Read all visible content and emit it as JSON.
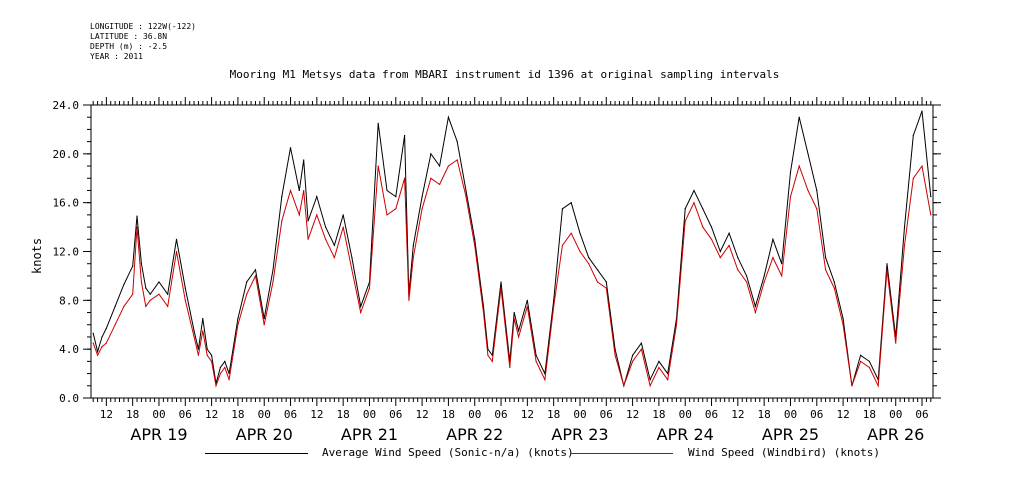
{
  "header": {
    "longitude": "LONGITUDE : 122W(-122)",
    "latitude": "LATITUDE : 36.8N",
    "depth": "DEPTH (m) : -2.5",
    "year": "YEAR : 2011"
  },
  "chart_data": {
    "type": "line",
    "title": "Mooring M1 Metsys data from MBARI instrument id 1396 at original sampling intervals",
    "ylabel": "knots",
    "xlabel": "",
    "ylim": [
      0,
      24
    ],
    "yticks": [
      "0.0",
      "4.0",
      "8.0",
      "12.0",
      "16.0",
      "20.0",
      "24.0"
    ],
    "x_unit": "hours since 2011-04-18 00:00",
    "xlim": [
      8.5,
      200.5
    ],
    "hour_tick_labels": [
      "12",
      "18",
      "00",
      "06",
      "12",
      "18",
      "00",
      "06",
      "12",
      "18",
      "00",
      "06",
      "12",
      "18",
      "00",
      "06",
      "12",
      "18",
      "00",
      "06",
      "12",
      "18",
      "00",
      "06",
      "12",
      "18",
      "00",
      "06",
      "12",
      "18",
      "00",
      "06"
    ],
    "day_labels": [
      "APR 19",
      "APR 20",
      "APR 21",
      "APR 22",
      "APR 23",
      "APR 24",
      "APR 25",
      "APR 26"
    ],
    "legend_position": "bottom",
    "x": [
      9,
      10,
      11,
      12,
      14,
      16,
      18,
      19,
      20,
      21,
      22,
      24,
      26,
      28,
      30,
      32,
      33,
      34,
      35,
      36,
      37,
      38,
      39,
      40,
      42,
      44,
      46,
      48,
      50,
      52,
      54,
      56,
      57,
      58,
      60,
      62,
      64,
      66,
      68,
      70,
      72,
      74,
      76,
      78,
      80,
      81,
      82,
      84,
      86,
      88,
      90,
      92,
      94,
      96,
      98,
      99,
      100,
      102,
      104,
      105,
      106,
      108,
      110,
      112,
      114,
      116,
      118,
      120,
      122,
      124,
      126,
      128,
      130,
      132,
      134,
      136,
      138,
      140,
      142,
      144,
      146,
      148,
      150,
      152,
      154,
      156,
      158,
      160,
      162,
      164,
      166,
      168,
      170,
      172,
      174,
      176,
      178,
      180,
      182,
      184,
      186,
      188,
      190,
      192,
      194,
      196,
      198,
      200
    ],
    "series": [
      {
        "name": "Average Wind Speed (Sonic-n/a) (knots)",
        "color": "#000000",
        "values": [
          5.3,
          3.8,
          5.0,
          5.7,
          7.5,
          9.3,
          10.8,
          14.9,
          11.0,
          9.0,
          8.5,
          9.5,
          8.5,
          13.0,
          9.0,
          5.5,
          4.0,
          6.5,
          4.0,
          3.5,
          1.2,
          2.5,
          3.0,
          2.0,
          6.5,
          9.5,
          10.5,
          6.5,
          10.5,
          16.5,
          20.5,
          17.0,
          19.5,
          14.5,
          16.5,
          14.0,
          12.5,
          15.0,
          11.5,
          7.5,
          9.5,
          22.5,
          17.0,
          16.5,
          21.5,
          8.5,
          12.5,
          16.5,
          20.0,
          19.0,
          23.0,
          21.0,
          17.0,
          13.0,
          7.5,
          4.0,
          3.5,
          9.5,
          3.0,
          7.0,
          5.5,
          8.0,
          3.5,
          2.0,
          8.0,
          15.5,
          16.0,
          13.5,
          11.5,
          10.5,
          9.5,
          4.0,
          1.0,
          3.5,
          4.5,
          1.5,
          3.0,
          2.0,
          6.5,
          15.5,
          17.0,
          15.5,
          14.0,
          12.0,
          13.5,
          11.5,
          10.0,
          7.5,
          10.0,
          13.0,
          11.0,
          18.5,
          23.0,
          20.0,
          17.0,
          11.5,
          9.5,
          6.5,
          1.0,
          3.5,
          3.0,
          1.5,
          11.0,
          5.0,
          14.0,
          21.5,
          23.5,
          16.5
        ]
      },
      {
        "name": "Wind Speed (Windbird) (knots)",
        "color": "#cc0000",
        "values": [
          4.5,
          3.5,
          4.2,
          4.5,
          6.0,
          7.5,
          8.5,
          14.0,
          9.5,
          7.5,
          8.0,
          8.5,
          7.5,
          12.0,
          8.0,
          5.0,
          3.5,
          5.5,
          3.5,
          3.0,
          1.0,
          2.0,
          2.5,
          1.5,
          6.0,
          8.5,
          10.0,
          6.0,
          9.5,
          14.5,
          17.0,
          15.0,
          17.0,
          13.0,
          15.0,
          13.0,
          11.5,
          14.0,
          10.5,
          7.0,
          9.0,
          19.0,
          15.0,
          15.5,
          18.0,
          8.0,
          11.5,
          15.5,
          18.0,
          17.5,
          19.0,
          19.5,
          16.5,
          12.5,
          7.0,
          3.5,
          3.0,
          9.0,
          2.5,
          6.5,
          5.0,
          7.5,
          3.0,
          1.5,
          7.5,
          12.5,
          13.5,
          12.0,
          11.0,
          9.5,
          9.0,
          3.5,
          1.0,
          3.0,
          4.0,
          1.0,
          2.5,
          1.5,
          6.0,
          14.5,
          16.0,
          14.0,
          13.0,
          11.5,
          12.5,
          10.5,
          9.5,
          7.0,
          9.5,
          11.5,
          10.0,
          16.5,
          19.0,
          17.0,
          15.5,
          10.5,
          9.0,
          6.0,
          1.0,
          3.0,
          2.5,
          1.0,
          10.5,
          4.5,
          12.5,
          18.0,
          19.0,
          15.0
        ]
      }
    ]
  }
}
